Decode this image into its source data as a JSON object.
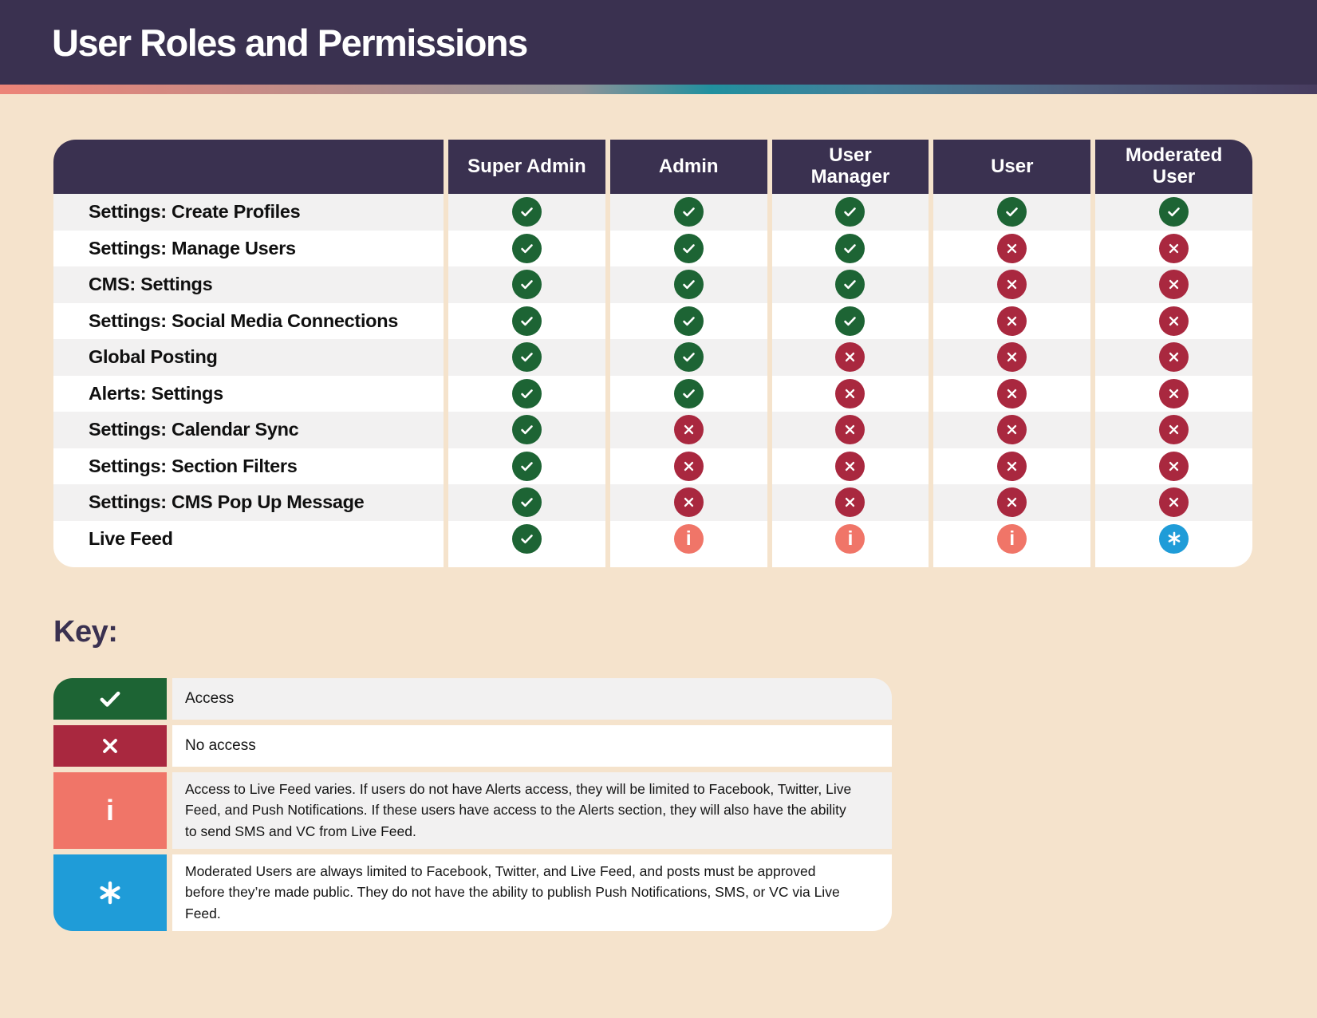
{
  "title": "User Roles and Permissions",
  "key_heading": "Key:",
  "matrix": {
    "columns": [
      "Super Admin",
      "Admin",
      "User\nManager",
      "User",
      "Moderated\nUser"
    ],
    "rows": [
      {
        "label": "Settings: Create Profiles",
        "cells": [
          "check",
          "check",
          "check",
          "check",
          "check"
        ]
      },
      {
        "label": "Settings: Manage Users",
        "cells": [
          "check",
          "check",
          "check",
          "x",
          "x"
        ]
      },
      {
        "label": "CMS: Settings",
        "cells": [
          "check",
          "check",
          "check",
          "x",
          "x"
        ]
      },
      {
        "label": "Settings: Social Media Connections",
        "cells": [
          "check",
          "check",
          "check",
          "x",
          "x"
        ]
      },
      {
        "label": "Global Posting",
        "cells": [
          "check",
          "check",
          "x",
          "x",
          "x"
        ]
      },
      {
        "label": "Alerts: Settings",
        "cells": [
          "check",
          "check",
          "x",
          "x",
          "x"
        ]
      },
      {
        "label": "Settings: Calendar Sync",
        "cells": [
          "check",
          "x",
          "x",
          "x",
          "x"
        ]
      },
      {
        "label": "Settings: Section Filters",
        "cells": [
          "check",
          "x",
          "x",
          "x",
          "x"
        ]
      },
      {
        "label": "Settings: CMS Pop Up Message",
        "cells": [
          "check",
          "x",
          "x",
          "x",
          "x"
        ]
      },
      {
        "label": "Live Feed",
        "cells": [
          "check",
          "info",
          "info",
          "info",
          "star"
        ]
      }
    ]
  },
  "key": {
    "items": [
      {
        "icon": "check",
        "color": "#1D6434",
        "text": "Access"
      },
      {
        "icon": "x",
        "color": "#A9283F",
        "text": "No access"
      },
      {
        "icon": "info",
        "color": "#F07568",
        "text": "Access to Live Feed varies. If users do not have Alerts access, they will be limited to Facebook, Twitter, Live Feed, and Push Notifications. If these users have access to the Alerts section, they will also have the ability to send SMS and VC from Live Feed."
      },
      {
        "icon": "star",
        "color": "#1F9CD8",
        "text": "Moderated Users are always limited to Facebook, Twitter, and Live Feed, and posts must be approved before they’re made public. They do not have the ability to publish Push Notifications, SMS, or VC via Live Feed."
      }
    ]
  },
  "colors": {
    "header_bg": "#3A3150",
    "page_bg": "#F5E3CC",
    "access_green": "#1D6434",
    "no_access_red": "#A9283F",
    "info_salmon": "#F07568",
    "moderated_blue": "#1F9CD8",
    "row_alt": "#F2F1F1",
    "gradient": [
      "#ED8478",
      "#8D9298",
      "#21909E",
      "#473C5F"
    ]
  }
}
